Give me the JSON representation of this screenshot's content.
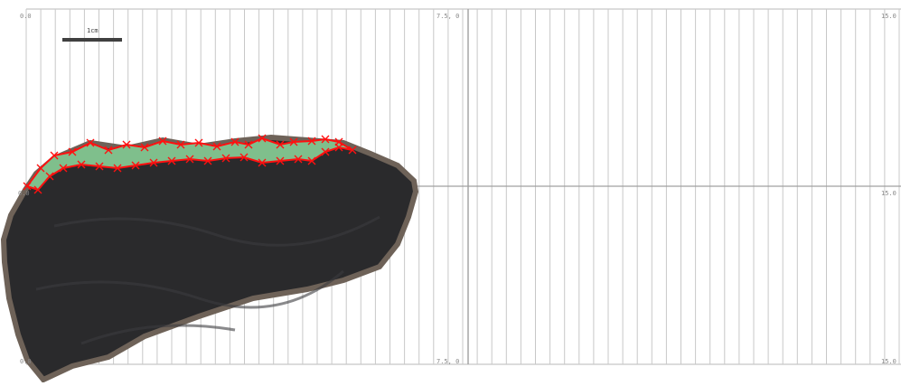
{
  "grid": {
    "labels": {
      "top_left": "0.0",
      "top_mid": "7.5, 0",
      "top_right": "15.0",
      "mid_left": "0.0",
      "mid_right": "15.0",
      "bottom_left": "0.0",
      "bottom_mid": "7.5, 0",
      "bottom_right": "15.0"
    }
  },
  "scale_bar": {
    "label": "1cm"
  },
  "colors": {
    "stone": "#2b2b2d",
    "stone_edge": "#6e6258",
    "highlight_fill": "#7fbf8c",
    "highlight_outline": "#ff1010",
    "grid_line": "#c8c8c8",
    "axis_line": "#a0a0a0"
  }
}
